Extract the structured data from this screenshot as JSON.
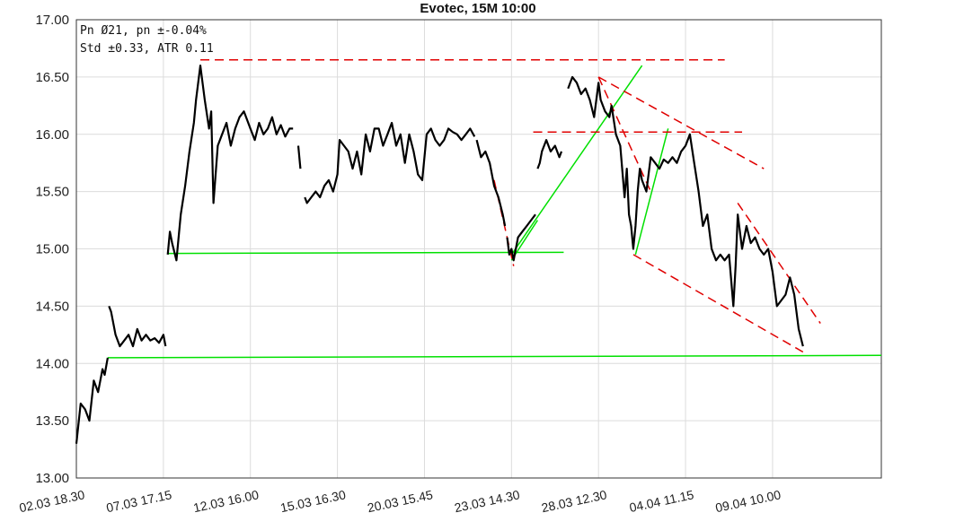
{
  "chart_data": {
    "type": "line",
    "title": "Evotec, 15M 10:00",
    "annotations": [
      "Pn  Ø21, pn ±-0.04%",
      "Std ±0.33, ATR 0.11"
    ],
    "xlabel": "",
    "ylabel": "",
    "ylim": [
      13.0,
      17.0
    ],
    "yticks": [
      "13.00",
      "13.50",
      "14.00",
      "14.50",
      "15.00",
      "15.50",
      "16.00",
      "16.50",
      "17.00"
    ],
    "xlim": [
      0,
      18.5
    ],
    "xticks": [
      {
        "x": 0,
        "label": "02.03 18.30"
      },
      {
        "x": 2,
        "label": "07.03 17.15"
      },
      {
        "x": 4,
        "label": "12.03 16.00"
      },
      {
        "x": 6,
        "label": "15.03 16.30"
      },
      {
        "x": 8,
        "label": "20.03 15.45"
      },
      {
        "x": 10,
        "label": "23.03 14.30"
      },
      {
        "x": 12,
        "label": "28.03 12.30"
      },
      {
        "x": 14,
        "label": "04.04 11.15"
      },
      {
        "x": 16,
        "label": "09.04 10.00"
      }
    ],
    "grid": true,
    "colors": {
      "price": "#000000",
      "support": "#00e000",
      "resistance": "#e00000"
    },
    "series": [
      {
        "color": "#000000",
        "segments": [
          [
            [
              0.0,
              13.3
            ],
            [
              0.1,
              13.65
            ],
            [
              0.2,
              13.6
            ],
            [
              0.3,
              13.5
            ],
            [
              0.4,
              13.85
            ],
            [
              0.5,
              13.75
            ],
            [
              0.6,
              13.95
            ],
            [
              0.65,
              13.9
            ],
            [
              0.72,
              14.05
            ]
          ],
          [
            [
              0.75,
              14.5
            ],
            [
              0.8,
              14.45
            ],
            [
              0.9,
              14.25
            ],
            [
              1.0,
              14.15
            ],
            [
              1.1,
              14.2
            ],
            [
              1.2,
              14.25
            ],
            [
              1.3,
              14.15
            ],
            [
              1.4,
              14.3
            ],
            [
              1.5,
              14.2
            ],
            [
              1.6,
              14.25
            ],
            [
              1.7,
              14.2
            ],
            [
              1.8,
              14.22
            ],
            [
              1.9,
              14.18
            ],
            [
              2.0,
              14.25
            ],
            [
              2.05,
              14.15
            ]
          ],
          [
            [
              2.1,
              14.95
            ],
            [
              2.15,
              15.15
            ],
            [
              2.2,
              15.05
            ],
            [
              2.3,
              14.9
            ],
            [
              2.4,
              15.3
            ],
            [
              2.5,
              15.55
            ],
            [
              2.6,
              15.85
            ],
            [
              2.7,
              16.1
            ],
            [
              2.75,
              16.3
            ],
            [
              2.85,
              16.6
            ],
            [
              2.95,
              16.3
            ],
            [
              3.05,
              16.05
            ],
            [
              3.1,
              16.2
            ],
            [
              3.15,
              15.4
            ],
            [
              3.25,
              15.9
            ],
            [
              3.35,
              16.0
            ],
            [
              3.45,
              16.1
            ],
            [
              3.55,
              15.9
            ],
            [
              3.65,
              16.05
            ],
            [
              3.75,
              16.15
            ],
            [
              3.85,
              16.2
            ],
            [
              4.0,
              16.05
            ],
            [
              4.1,
              15.95
            ],
            [
              4.2,
              16.1
            ],
            [
              4.3,
              16.0
            ],
            [
              4.4,
              16.05
            ],
            [
              4.5,
              16.15
            ],
            [
              4.6,
              16.0
            ],
            [
              4.7,
              16.08
            ],
            [
              4.8,
              15.98
            ],
            [
              4.9,
              16.05
            ],
            [
              4.98,
              16.05
            ]
          ],
          [
            [
              5.1,
              15.9
            ],
            [
              5.15,
              15.7
            ]
          ],
          [
            [
              5.25,
              15.45
            ],
            [
              5.3,
              15.4
            ],
            [
              5.4,
              15.45
            ],
            [
              5.5,
              15.5
            ],
            [
              5.6,
              15.45
            ],
            [
              5.7,
              15.55
            ],
            [
              5.8,
              15.6
            ],
            [
              5.9,
              15.5
            ],
            [
              6.0,
              15.65
            ],
            [
              6.05,
              15.95
            ],
            [
              6.15,
              15.9
            ],
            [
              6.25,
              15.85
            ],
            [
              6.35,
              15.7
            ],
            [
              6.45,
              15.85
            ],
            [
              6.55,
              15.65
            ],
            [
              6.65,
              16.0
            ],
            [
              6.75,
              15.85
            ],
            [
              6.85,
              16.05
            ],
            [
              6.95,
              16.05
            ],
            [
              7.05,
              15.9
            ],
            [
              7.15,
              16.0
            ],
            [
              7.25,
              16.1
            ],
            [
              7.35,
              15.9
            ],
            [
              7.45,
              16.0
            ],
            [
              7.55,
              15.75
            ],
            [
              7.65,
              16.0
            ],
            [
              7.75,
              15.85
            ],
            [
              7.85,
              15.65
            ],
            [
              7.95,
              15.6
            ],
            [
              8.05,
              16.0
            ],
            [
              8.15,
              16.05
            ],
            [
              8.25,
              15.95
            ],
            [
              8.35,
              15.9
            ],
            [
              8.45,
              15.95
            ],
            [
              8.55,
              16.05
            ],
            [
              8.65,
              16.02
            ],
            [
              8.75,
              16.0
            ],
            [
              8.85,
              15.95
            ],
            [
              8.95,
              16.0
            ],
            [
              9.05,
              16.05
            ],
            [
              9.15,
              15.98
            ]
          ],
          [
            [
              9.2,
              15.95
            ],
            [
              9.3,
              15.8
            ],
            [
              9.4,
              15.85
            ],
            [
              9.5,
              15.75
            ],
            [
              9.6,
              15.55
            ],
            [
              9.7,
              15.45
            ],
            [
              9.8,
              15.3
            ],
            [
              9.85,
              15.2
            ]
          ],
          [
            [
              9.9,
              15.1
            ],
            [
              9.95,
              14.95
            ],
            [
              10.0,
              15.0
            ],
            [
              10.05,
              14.9
            ],
            [
              10.15,
              15.1
            ],
            [
              10.25,
              15.15
            ],
            [
              10.35,
              15.2
            ],
            [
              10.45,
              15.25
            ],
            [
              10.55,
              15.3
            ]
          ],
          [
            [
              10.6,
              15.7
            ],
            [
              10.65,
              15.75
            ],
            [
              10.7,
              15.85
            ],
            [
              10.8,
              15.95
            ],
            [
              10.9,
              15.85
            ],
            [
              11.0,
              15.9
            ],
            [
              11.1,
              15.8
            ],
            [
              11.15,
              15.85
            ]
          ],
          [
            [
              11.3,
              16.4
            ],
            [
              11.4,
              16.5
            ],
            [
              11.5,
              16.45
            ],
            [
              11.6,
              16.35
            ],
            [
              11.7,
              16.4
            ],
            [
              11.8,
              16.3
            ],
            [
              11.9,
              16.15
            ],
            [
              12.0,
              16.45
            ],
            [
              12.05,
              16.3
            ],
            [
              12.15,
              16.2
            ],
            [
              12.25,
              16.15
            ],
            [
              12.3,
              16.25
            ],
            [
              12.4,
              16.0
            ],
            [
              12.5,
              15.9
            ],
            [
              12.6,
              15.45
            ],
            [
              12.65,
              15.7
            ],
            [
              12.7,
              15.3
            ],
            [
              12.75,
              15.2
            ],
            [
              12.8,
              15.0
            ],
            [
              12.85,
              15.2
            ],
            [
              12.9,
              15.5
            ],
            [
              12.95,
              15.7
            ],
            [
              13.0,
              15.6
            ],
            [
              13.1,
              15.5
            ],
            [
              13.2,
              15.8
            ],
            [
              13.3,
              15.75
            ],
            [
              13.4,
              15.7
            ],
            [
              13.5,
              15.78
            ],
            [
              13.6,
              15.75
            ],
            [
              13.7,
              15.8
            ],
            [
              13.8,
              15.75
            ],
            [
              13.9,
              15.85
            ],
            [
              14.0,
              15.9
            ],
            [
              14.1,
              16.0
            ],
            [
              14.2,
              15.75
            ],
            [
              14.3,
              15.5
            ],
            [
              14.4,
              15.2
            ],
            [
              14.5,
              15.3
            ],
            [
              14.6,
              15.0
            ],
            [
              14.7,
              14.9
            ],
            [
              14.8,
              14.95
            ],
            [
              14.9,
              14.9
            ],
            [
              15.0,
              14.95
            ],
            [
              15.1,
              14.5
            ],
            [
              15.15,
              14.85
            ],
            [
              15.2,
              15.3
            ],
            [
              15.3,
              15.0
            ],
            [
              15.4,
              15.2
            ],
            [
              15.5,
              15.05
            ],
            [
              15.6,
              15.1
            ],
            [
              15.7,
              15.0
            ],
            [
              15.8,
              14.95
            ],
            [
              15.9,
              15.0
            ],
            [
              16.0,
              14.8
            ],
            [
              16.1,
              14.5
            ],
            [
              16.2,
              14.55
            ],
            [
              16.3,
              14.6
            ],
            [
              16.4,
              14.75
            ],
            [
              16.5,
              14.6
            ],
            [
              16.6,
              14.3
            ],
            [
              16.7,
              14.15
            ]
          ]
        ]
      }
    ],
    "trendlines": [
      {
        "color": "#00e000",
        "dash": false,
        "points": [
          [
            0.72,
            14.05
          ],
          [
            18.5,
            14.07
          ]
        ]
      },
      {
        "color": "#00e000",
        "dash": false,
        "points": [
          [
            2.1,
            14.96
          ],
          [
            11.2,
            14.97
          ]
        ]
      },
      {
        "color": "#00e000",
        "dash": false,
        "points": [
          [
            10.0,
            14.9
          ],
          [
            10.6,
            15.25
          ]
        ]
      },
      {
        "color": "#00e000",
        "dash": false,
        "points": [
          [
            10.0,
            14.95
          ],
          [
            13.0,
            16.6
          ]
        ]
      },
      {
        "color": "#00e000",
        "dash": false,
        "points": [
          [
            12.85,
            14.95
          ],
          [
            13.6,
            16.05
          ]
        ]
      },
      {
        "color": "#e00000",
        "dash": true,
        "points": [
          [
            2.85,
            16.65
          ],
          [
            14.9,
            16.65
          ]
        ]
      },
      {
        "color": "#e00000",
        "dash": true,
        "points": [
          [
            10.5,
            16.02
          ],
          [
            15.3,
            16.02
          ]
        ]
      },
      {
        "color": "#e00000",
        "dash": true,
        "points": [
          [
            9.6,
            15.6
          ],
          [
            10.05,
            14.85
          ]
        ]
      },
      {
        "color": "#e00000",
        "dash": true,
        "points": [
          [
            12.0,
            16.5
          ],
          [
            13.2,
            15.5
          ]
        ]
      },
      {
        "color": "#e00000",
        "dash": true,
        "points": [
          [
            12.0,
            16.5
          ],
          [
            15.8,
            15.7
          ]
        ]
      },
      {
        "color": "#e00000",
        "dash": true,
        "points": [
          [
            12.8,
            14.95
          ],
          [
            16.7,
            14.1
          ]
        ]
      },
      {
        "color": "#e00000",
        "dash": true,
        "points": [
          [
            15.2,
            15.4
          ],
          [
            17.1,
            14.35
          ]
        ]
      }
    ]
  }
}
